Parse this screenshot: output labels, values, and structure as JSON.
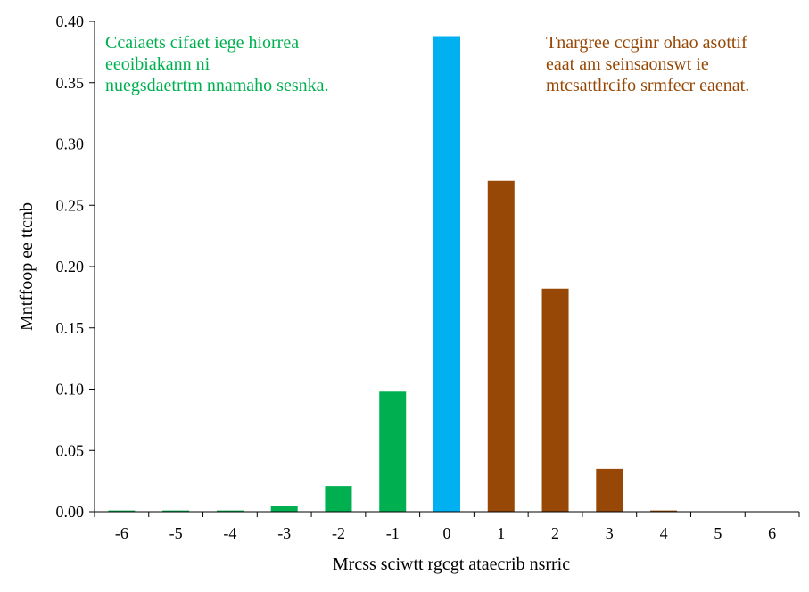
{
  "chart_data": {
    "type": "bar",
    "title": "",
    "xlabel": "Mrcss sciwtt rgcgt ataecrib nsrric",
    "ylabel": "Mntffoop ee ttcnb",
    "ylim": [
      0,
      0.4
    ],
    "ytick_labels": [
      "0.00",
      "0.05",
      "0.10",
      "0.15",
      "0.20",
      "0.25",
      "0.30",
      "0.35",
      "0.40"
    ],
    "categories": [
      "-6",
      "-5",
      "-4",
      "-3",
      "-2",
      "-1",
      "0",
      "1",
      "2",
      "3",
      "4",
      "5",
      "6"
    ],
    "values": [
      0.001,
      0.001,
      0.001,
      0.005,
      0.021,
      0.098,
      0.388,
      0.27,
      0.182,
      0.035,
      0.001,
      0,
      0
    ],
    "bar_colors": [
      "#00b050",
      "#00b050",
      "#00b050",
      "#00b050",
      "#00b050",
      "#00b050",
      "#00b0f0",
      "#974806",
      "#974806",
      "#974806",
      "#974806",
      "#974806",
      "#974806"
    ],
    "grid": false,
    "legend": "none",
    "annotations": [
      {
        "lines": [
          "Ccaiaets cifaet iege hiorrea",
          "eeoibiakann ni",
          "nuegsdaetrtrn nnamaho sesnka."
        ],
        "color": "#00b050",
        "placement": "top-left"
      },
      {
        "lines": [
          "Tnargree ccginr ohao asottif",
          "eaat am seinsaonswt ie",
          "mtcsattlrcifo srmfecr eaenat."
        ],
        "color": "#974806",
        "placement": "top-right"
      }
    ]
  }
}
